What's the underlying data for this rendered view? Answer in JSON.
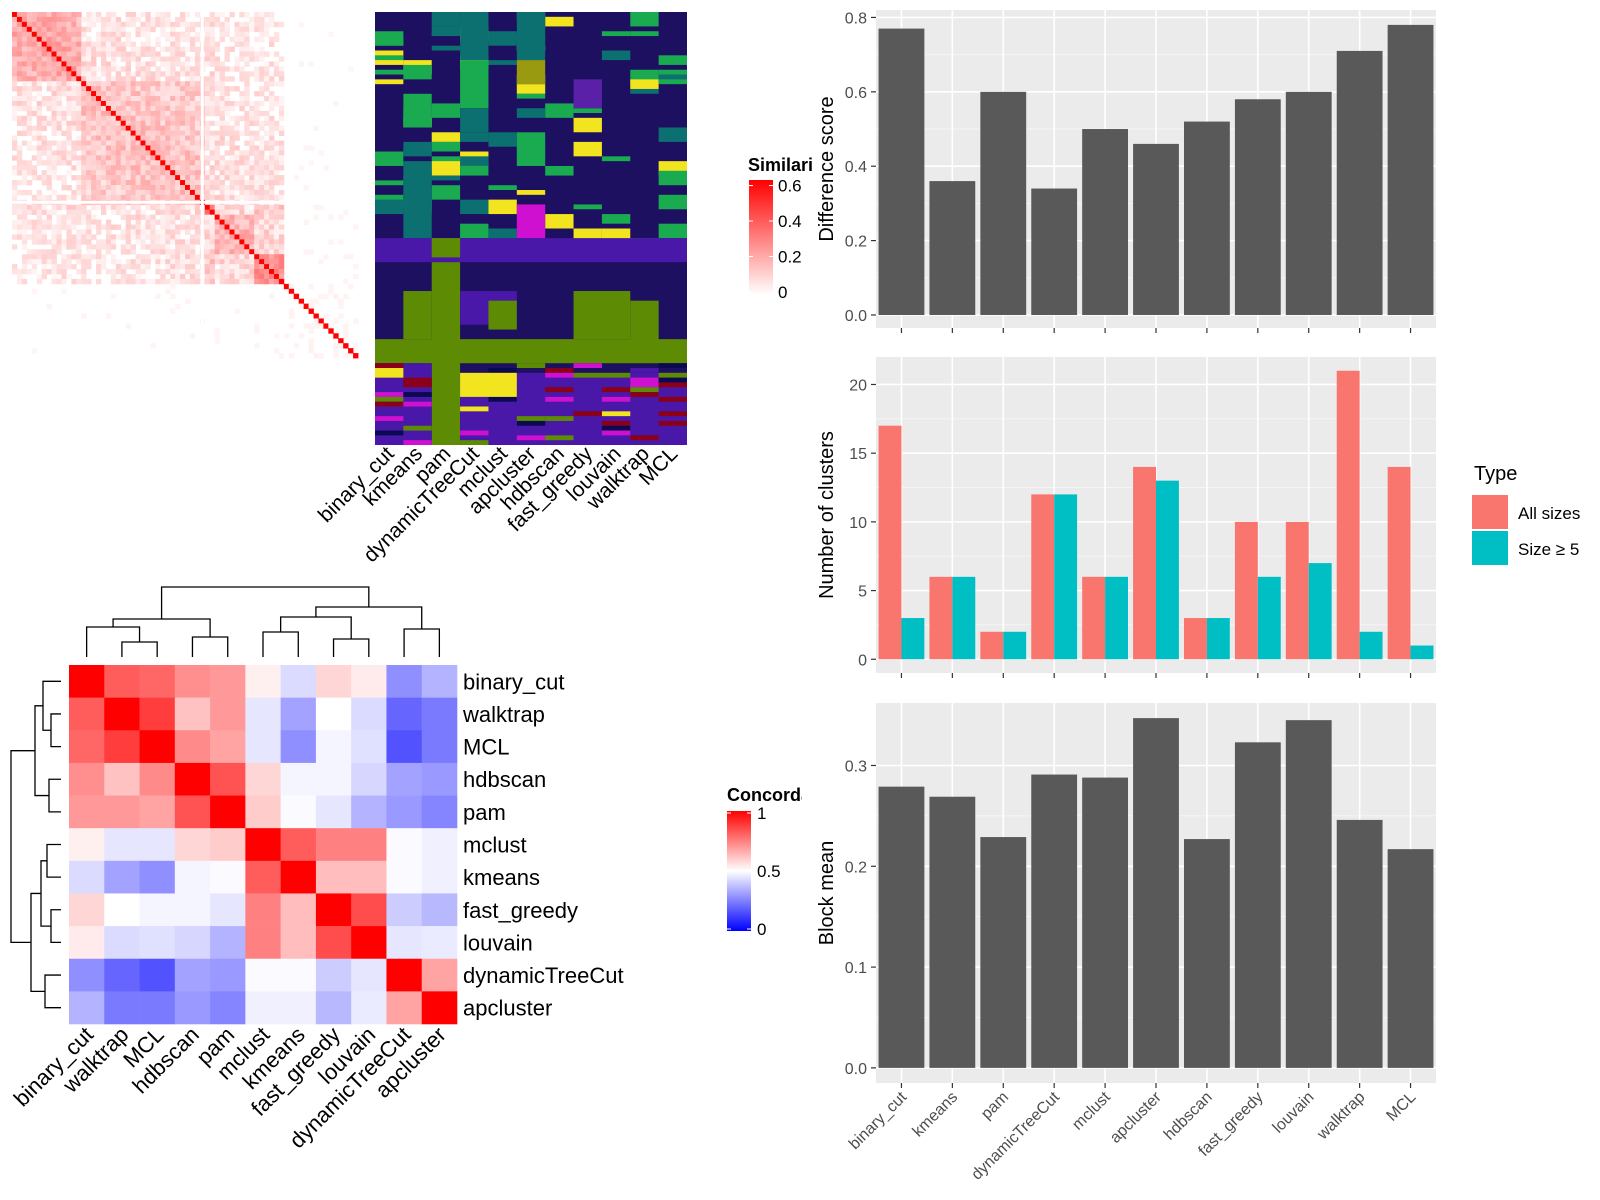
{
  "chart_data": [
    {
      "type": "heatmap",
      "id": "similarity_matrix",
      "legend_title": "Similarity",
      "legend_ticks": [
        0,
        0.2,
        0.4,
        0.6
      ],
      "colors": {
        "low": "#ffffff",
        "high": "#ff0000"
      },
      "blocks": [
        {
          "start": 0.0,
          "end": 0.2,
          "level": 0.35
        },
        {
          "start": 0.2,
          "end": 0.55,
          "level": 0.25
        },
        {
          "start": 0.55,
          "end": 0.58,
          "level": 0.6
        },
        {
          "start": 0.58,
          "end": 0.7,
          "level": 0.3
        },
        {
          "start": 0.7,
          "end": 0.78,
          "level": 0.45
        },
        {
          "start": 0.78,
          "end": 1.0,
          "level": 0.05
        }
      ]
    },
    {
      "type": "heatmap",
      "id": "cluster_membership",
      "columns": [
        "binary_cut",
        "kmeans",
        "pam",
        "dynamicTreeCut",
        "mclust",
        "apcluster",
        "hdbscan",
        "fast_greedy",
        "louvain",
        "walktrap",
        "MCL"
      ],
      "colors": {
        "background": "#1d1060",
        "purple": "#4a18a8",
        "olive": "#5d8c04",
        "yellow": "#f2e41f",
        "green": "#1aaa50",
        "teal": "#0c6f70",
        "magenta": "#d010d0",
        "darkred": "#8b0018",
        "navy": "#0a0a50"
      }
    },
    {
      "type": "heatmap",
      "id": "concordance",
      "legend_title": "Concordance",
      "legend_ticks": [
        0,
        0.5,
        1
      ],
      "rows": [
        "binary_cut",
        "walktrap",
        "MCL",
        "hdbscan",
        "pam",
        "mclust",
        "kmeans",
        "fast_greedy",
        "louvain",
        "dynamicTreeCut",
        "apcluster"
      ],
      "columns": [
        "binary_cut",
        "walktrap",
        "MCL",
        "hdbscan",
        "pam",
        "mclust",
        "kmeans",
        "fast_greedy",
        "louvain",
        "dynamicTreeCut",
        "apcluster"
      ],
      "values": [
        [
          1.0,
          0.82,
          0.8,
          0.72,
          0.7,
          0.53,
          0.43,
          0.58,
          0.54,
          0.28,
          0.35
        ],
        [
          0.82,
          1.0,
          0.88,
          0.62,
          0.7,
          0.45,
          0.32,
          0.5,
          0.43,
          0.2,
          0.24
        ],
        [
          0.8,
          0.88,
          1.0,
          0.73,
          0.68,
          0.45,
          0.28,
          0.48,
          0.44,
          0.16,
          0.24
        ],
        [
          0.72,
          0.62,
          0.73,
          1.0,
          0.84,
          0.58,
          0.48,
          0.48,
          0.42,
          0.32,
          0.3
        ],
        [
          0.7,
          0.7,
          0.68,
          0.84,
          1.0,
          0.6,
          0.49,
          0.45,
          0.35,
          0.3,
          0.26
        ],
        [
          0.53,
          0.45,
          0.45,
          0.58,
          0.6,
          1.0,
          0.82,
          0.75,
          0.75,
          0.49,
          0.47
        ],
        [
          0.43,
          0.32,
          0.28,
          0.48,
          0.49,
          0.82,
          1.0,
          0.63,
          0.63,
          0.49,
          0.47
        ],
        [
          0.58,
          0.5,
          0.48,
          0.48,
          0.45,
          0.75,
          0.63,
          1.0,
          0.85,
          0.4,
          0.36
        ],
        [
          0.54,
          0.43,
          0.44,
          0.42,
          0.35,
          0.75,
          0.63,
          0.85,
          1.0,
          0.45,
          0.46
        ],
        [
          0.28,
          0.2,
          0.16,
          0.32,
          0.3,
          0.49,
          0.49,
          0.4,
          0.45,
          1.0,
          0.68
        ],
        [
          0.35,
          0.24,
          0.24,
          0.3,
          0.26,
          0.47,
          0.47,
          0.36,
          0.46,
          0.68,
          1.0
        ]
      ]
    },
    {
      "type": "bar",
      "id": "difference_score",
      "categories": [
        "binary_cut",
        "kmeans",
        "pam",
        "dynamicTreeCut",
        "mclust",
        "apcluster",
        "hdbscan",
        "fast_greedy",
        "louvain",
        "walktrap",
        "MCL"
      ],
      "values": [
        0.77,
        0.36,
        0.6,
        0.34,
        0.5,
        0.46,
        0.52,
        0.58,
        0.6,
        0.71,
        0.78
      ],
      "ylabel": "Difference score",
      "ylim": [
        -0.035,
        0.82
      ],
      "yticks": [
        0.0,
        0.2,
        0.4,
        0.6,
        0.8
      ],
      "yticklabels": [
        "0.0",
        "0.2",
        "0.4",
        "0.6",
        "0.8"
      ],
      "grid": true,
      "bar_color": "#595959"
    },
    {
      "type": "bar",
      "id": "number_of_clusters",
      "categories": [
        "binary_cut",
        "kmeans",
        "pam",
        "dynamicTreeCut",
        "mclust",
        "apcluster",
        "hdbscan",
        "fast_greedy",
        "louvain",
        "walktrap",
        "MCL"
      ],
      "series": [
        {
          "name": "All sizes",
          "color": "#f8766d",
          "values": [
            17,
            6,
            2,
            12,
            6,
            14,
            3,
            10,
            10,
            21,
            14
          ]
        },
        {
          "name": "Size ≥ 5",
          "color": "#00bfc4",
          "values": [
            3,
            6,
            2,
            12,
            6,
            13,
            3,
            6,
            7,
            2,
            1
          ]
        }
      ],
      "ylabel": "Number of clusters",
      "ylim": [
        -1.0,
        22.0
      ],
      "yticks": [
        0,
        5,
        10,
        15,
        20
      ],
      "yticklabels": [
        "0",
        "5",
        "10",
        "15",
        "20"
      ],
      "grid": true,
      "legend_title": "Type",
      "legend_position": "right"
    },
    {
      "type": "bar",
      "id": "block_mean",
      "categories": [
        "binary_cut",
        "kmeans",
        "pam",
        "dynamicTreeCut",
        "mclust",
        "apcluster",
        "hdbscan",
        "fast_greedy",
        "louvain",
        "walktrap",
        "MCL"
      ],
      "values": [
        0.279,
        0.269,
        0.229,
        0.291,
        0.288,
        0.347,
        0.227,
        0.323,
        0.345,
        0.246,
        0.217
      ],
      "ylabel": "Block mean",
      "ylim": [
        -0.015,
        0.362
      ],
      "yticks": [
        0.0,
        0.1,
        0.2,
        0.3
      ],
      "yticklabels": [
        "0.0",
        "0.1",
        "0.2",
        "0.3"
      ],
      "grid": true,
      "bar_color": "#595959"
    }
  ]
}
